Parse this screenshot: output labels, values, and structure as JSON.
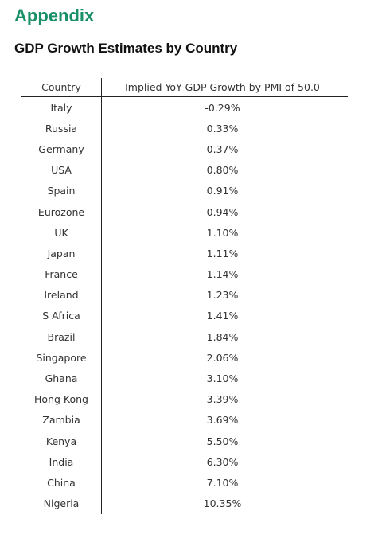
{
  "section_title": "Appendix",
  "table_title": "GDP Growth Estimates by Country",
  "colors": {
    "section_title": "#1a9068",
    "rule": "#222222"
  },
  "table": {
    "headers": {
      "country": "Country",
      "value": "Implied YoY GDP Growth by PMI of 50.0"
    },
    "rows": [
      {
        "country": "Italy",
        "value": "-0.29%"
      },
      {
        "country": "Russia",
        "value": "0.33%"
      },
      {
        "country": "Germany",
        "value": "0.37%"
      },
      {
        "country": "USA",
        "value": "0.80%"
      },
      {
        "country": "Spain",
        "value": "0.91%"
      },
      {
        "country": "Eurozone",
        "value": "0.94%"
      },
      {
        "country": "UK",
        "value": "1.10%"
      },
      {
        "country": "Japan",
        "value": "1.11%"
      },
      {
        "country": "France",
        "value": "1.14%"
      },
      {
        "country": "Ireland",
        "value": "1.23%"
      },
      {
        "country": "S Africa",
        "value": "1.41%"
      },
      {
        "country": "Brazil",
        "value": "1.84%"
      },
      {
        "country": "Singapore",
        "value": "2.06%"
      },
      {
        "country": "Ghana",
        "value": "3.10%"
      },
      {
        "country": "Hong Kong",
        "value": "3.39%"
      },
      {
        "country": "Zambia",
        "value": "3.69%"
      },
      {
        "country": "Kenya",
        "value": "5.50%"
      },
      {
        "country": "India",
        "value": "6.30%"
      },
      {
        "country": "China",
        "value": "7.10%"
      },
      {
        "country": "Nigeria",
        "value": "10.35%"
      }
    ]
  }
}
